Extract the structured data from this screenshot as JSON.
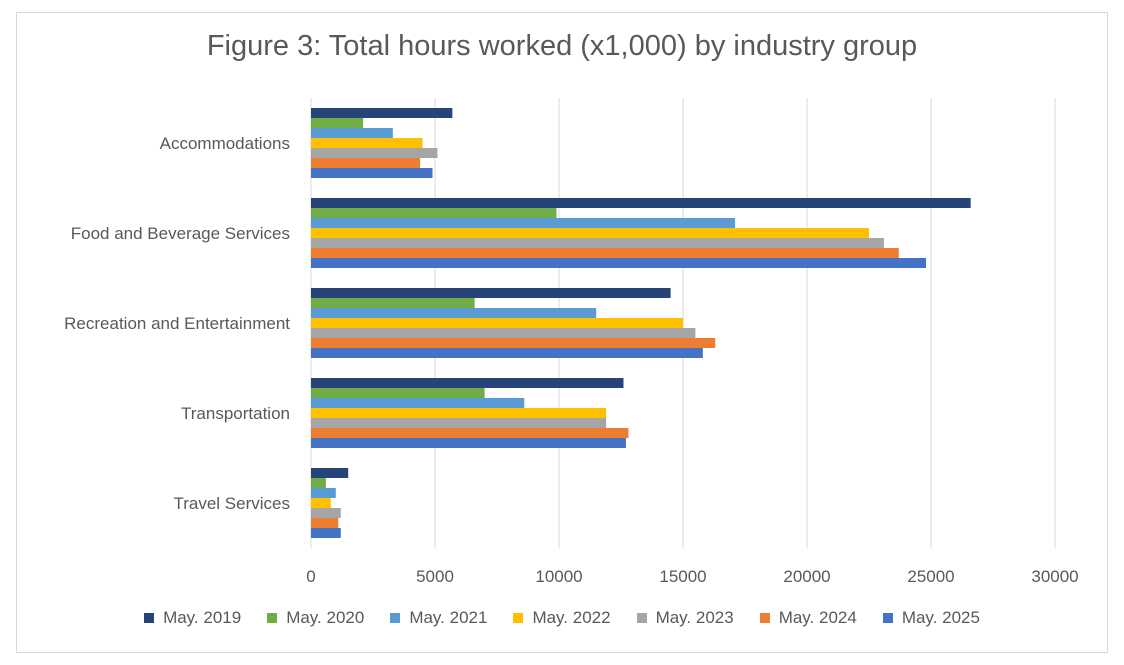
{
  "chart_data": {
    "type": "bar",
    "orientation": "horizontal",
    "title": "Figure 3: Total hours worked (x1,000) by industry group",
    "xlabel": "",
    "ylabel": "",
    "xlim": [
      0,
      30000
    ],
    "x_ticks": [
      "0",
      "5000",
      "10000",
      "15000",
      "20000",
      "25000",
      "30000"
    ],
    "grid": "vertical",
    "legend_position": "bottom",
    "categories": [
      "Accommodations",
      "Food and Beverage Services",
      "Recreation and Entertainment",
      "Transportation",
      "Travel Services"
    ],
    "series": [
      {
        "name": "May. 2019",
        "color": "#264478",
        "values": [
          5700,
          26600,
          14500,
          12600,
          1500
        ]
      },
      {
        "name": "May. 2020",
        "color": "#70ad47",
        "values": [
          2100,
          9900,
          6600,
          7000,
          600
        ]
      },
      {
        "name": "May. 2021",
        "color": "#5b9bd5",
        "values": [
          3300,
          17100,
          11500,
          8600,
          1000
        ]
      },
      {
        "name": "May. 2022",
        "color": "#ffc000",
        "values": [
          4500,
          22500,
          15000,
          11900,
          800
        ]
      },
      {
        "name": "May. 2023",
        "color": "#a5a5a5",
        "values": [
          5100,
          23100,
          15500,
          11900,
          1200
        ]
      },
      {
        "name": "May. 2024",
        "color": "#ed7d31",
        "values": [
          4400,
          23700,
          16300,
          12800,
          1100
        ]
      },
      {
        "name": "May. 2025",
        "color": "#4472c4",
        "values": [
          4900,
          24800,
          15800,
          12700,
          1200
        ]
      }
    ]
  }
}
